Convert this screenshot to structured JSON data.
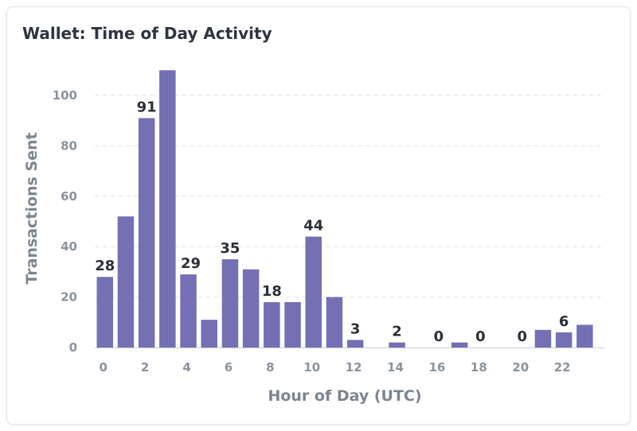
{
  "title": "Wallet: Time of Day Activity",
  "colors": {
    "bar": "#7570b3",
    "grid": "#e4e6ea",
    "axis": "#c8ccd2"
  },
  "chart_data": {
    "type": "bar",
    "title": "Wallet: Time of Day Activity",
    "xlabel": "Hour of Day (UTC)",
    "ylabel": "Transactions Sent",
    "categories": [
      0,
      1,
      2,
      3,
      4,
      5,
      6,
      7,
      8,
      9,
      10,
      11,
      12,
      13,
      14,
      15,
      16,
      17,
      18,
      19,
      20,
      21,
      22,
      23
    ],
    "values": [
      28,
      52,
      91,
      110,
      29,
      11,
      35,
      31,
      18,
      18,
      44,
      20,
      3,
      0,
      2,
      0,
      0,
      2,
      0,
      0,
      0,
      7,
      6,
      9
    ],
    "data_labels": [
      {
        "index": 0,
        "text": "28"
      },
      {
        "index": 2,
        "text": "91"
      },
      {
        "index": 4,
        "text": "29"
      },
      {
        "index": 6,
        "text": "35"
      },
      {
        "index": 8,
        "text": "18"
      },
      {
        "index": 10,
        "text": "44"
      },
      {
        "index": 12,
        "text": "3"
      },
      {
        "index": 14,
        "text": "2"
      },
      {
        "index": 16,
        "text": "0"
      },
      {
        "index": 18,
        "text": "0"
      },
      {
        "index": 20,
        "text": "0"
      },
      {
        "index": 22,
        "text": "6"
      }
    ],
    "x_ticks": [
      0,
      2,
      4,
      6,
      8,
      10,
      12,
      14,
      16,
      18,
      20,
      22
    ],
    "y_ticks": [
      0,
      20,
      40,
      60,
      80,
      100
    ],
    "ylim": [
      0,
      115
    ],
    "grid": "horizontal dashed",
    "legend": "none"
  }
}
